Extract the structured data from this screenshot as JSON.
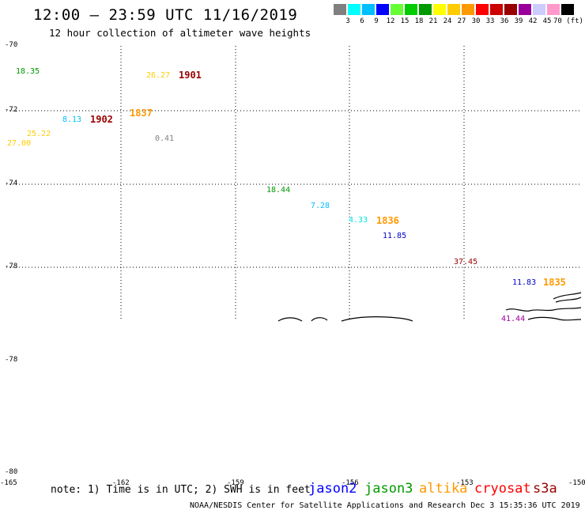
{
  "header": {
    "title": "12:00 — 23:59 UTC 11/16/2019",
    "subtitle": "12 hour collection of altimeter wave heights"
  },
  "legend": {
    "colors": [
      "#808080",
      "#00ffff",
      "#00bfff",
      "#0000ff",
      "#66ff33",
      "#00cc00",
      "#009900",
      "#ffff00",
      "#ffcc00",
      "#ff9900",
      "#ff0000",
      "#cc0000",
      "#990000",
      "#990099",
      "#ccccff",
      "#ff99cc",
      "#000000"
    ],
    "labels": [
      "3",
      "6",
      "9",
      "12",
      "15",
      "18",
      "21",
      "24",
      "27",
      "30",
      "33",
      "36",
      "39",
      "42",
      "45",
      "70 (ft)"
    ]
  },
  "axes": {
    "lat_upper": [
      "-70",
      "-72",
      "-74",
      "-78"
    ],
    "lat_lower": [
      "-78",
      "-80"
    ],
    "lon": [
      "-165",
      "-162",
      "-159",
      "-156",
      "-153",
      "-150"
    ]
  },
  "points": [
    {
      "text": "18.35",
      "color": "#009900"
    },
    {
      "text": "26.27",
      "color": "#ffcc00"
    },
    {
      "text": "8.13",
      "color": "#00bfff"
    },
    {
      "text": "25.22",
      "color": "#ffcc00"
    },
    {
      "text": "27.00",
      "color": "#ffcc00"
    },
    {
      "text": "0.41",
      "color": "#808080"
    },
    {
      "text": "18.44",
      "color": "#009900"
    },
    {
      "text": "7.28",
      "color": "#00bfff"
    },
    {
      "text": "4.33",
      "color": "#00e5e5"
    },
    {
      "text": "11.85",
      "color": "#0000cc"
    },
    {
      "text": "37.45",
      "color": "#990000"
    },
    {
      "text": "11.83",
      "color": "#0000cc"
    },
    {
      "text": "41.44",
      "color": "#990099"
    }
  ],
  "times": [
    {
      "text": "1901",
      "color": "#990000"
    },
    {
      "text": "1902",
      "color": "#990000"
    },
    {
      "text": "1837",
      "color": "#ff9900"
    },
    {
      "text": "1836",
      "color": "#ff9900"
    },
    {
      "text": "1835",
      "color": "#ff9900"
    }
  ],
  "note": "note: 1) Time is in UTC; 2) SWH is in feet",
  "satellites": [
    {
      "name": "jason2",
      "color": "#0000ff"
    },
    {
      "name": "jason3",
      "color": "#009900"
    },
    {
      "name": "altika",
      "color": "#ff9900"
    },
    {
      "name": "cryosat",
      "color": "#ff0000"
    },
    {
      "name": "s3a",
      "color": "#990000"
    }
  ],
  "footer": "NOAA/NESDIS Center for Satellite Applications and Research    Dec  3 15:35:36 UTC 2019"
}
